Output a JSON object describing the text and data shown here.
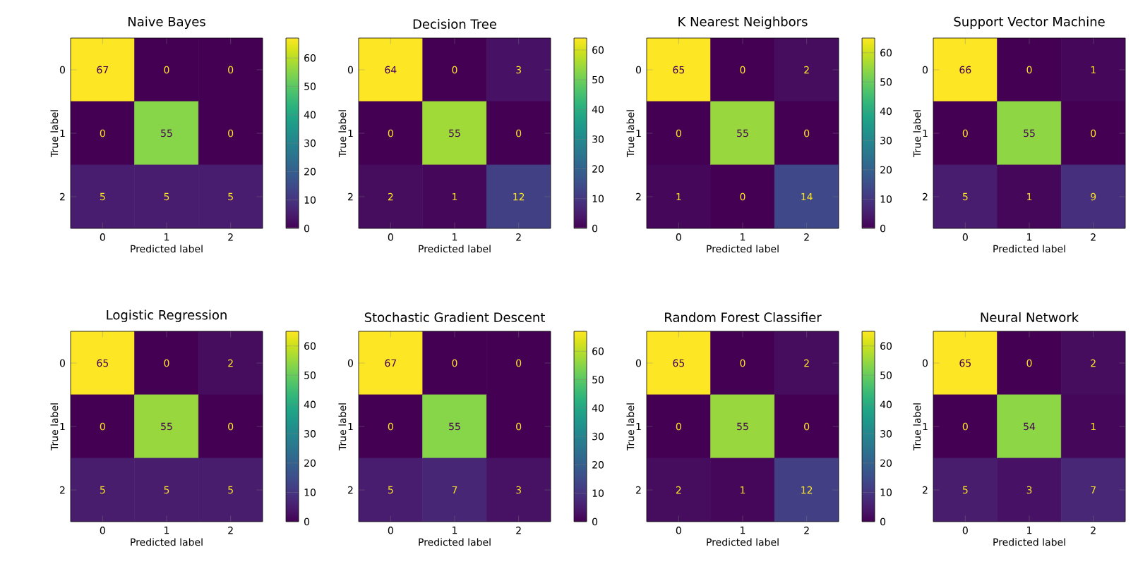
{
  "chart_data": [
    {
      "type": "heatmap",
      "title": "Naive Bayes",
      "xlabel": "Predicted label",
      "ylabel": "True label",
      "categories": [
        "0",
        "1",
        "2"
      ],
      "y_categories": [
        "0",
        "1",
        "2"
      ],
      "cells": [
        [
          67,
          0,
          0
        ],
        [
          0,
          55,
          0
        ],
        [
          5,
          5,
          5
        ]
      ],
      "data_labels": true,
      "clim": [
        0,
        67
      ],
      "cticks": [
        0,
        10,
        20,
        30,
        40,
        50,
        60
      ]
    },
    {
      "type": "heatmap",
      "title": "Decision Tree",
      "xlabel": "Predicted label",
      "ylabel": "True label",
      "categories": [
        "0",
        "1",
        "2"
      ],
      "y_categories": [
        "0",
        "1",
        "2"
      ],
      "cells": [
        [
          64,
          0,
          3
        ],
        [
          0,
          55,
          0
        ],
        [
          2,
          1,
          12
        ]
      ],
      "data_labels": true,
      "clim": [
        0,
        64
      ],
      "cticks": [
        0,
        10,
        20,
        30,
        40,
        50,
        60
      ]
    },
    {
      "type": "heatmap",
      "title": "K Nearest Neighbors",
      "xlabel": "Predicted label",
      "ylabel": "True label",
      "categories": [
        "0",
        "1",
        "2"
      ],
      "y_categories": [
        "0",
        "1",
        "2"
      ],
      "cells": [
        [
          65,
          0,
          2
        ],
        [
          0,
          55,
          0
        ],
        [
          1,
          0,
          14
        ]
      ],
      "data_labels": true,
      "clim": [
        0,
        65
      ],
      "cticks": [
        0,
        10,
        20,
        30,
        40,
        50,
        60
      ]
    },
    {
      "type": "heatmap",
      "title": "Support Vector Machine",
      "xlabel": "Predicted label",
      "ylabel": "True label",
      "categories": [
        "0",
        "1",
        "2"
      ],
      "y_categories": [
        "0",
        "1",
        "2"
      ],
      "cells": [
        [
          66,
          0,
          1
        ],
        [
          0,
          55,
          0
        ],
        [
          5,
          1,
          9
        ]
      ],
      "data_labels": true
    },
    {
      "type": "heatmap",
      "title": "Logistic Regression",
      "xlabel": "Predicted label",
      "ylabel": "True label",
      "categories": [
        "0",
        "1",
        "2"
      ],
      "y_categories": [
        "0",
        "1",
        "2"
      ],
      "cells": [
        [
          65,
          0,
          2
        ],
        [
          0,
          55,
          0
        ],
        [
          5,
          5,
          5
        ]
      ],
      "data_labels": true,
      "clim": [
        0,
        65
      ],
      "cticks": [
        0,
        10,
        20,
        30,
        40,
        50,
        60
      ]
    },
    {
      "type": "heatmap",
      "title": "Stochastic Gradient Descent",
      "xlabel": "Predicted label",
      "ylabel": "True label",
      "categories": [
        "0",
        "1",
        "2"
      ],
      "y_categories": [
        "0",
        "1",
        "2"
      ],
      "cells": [
        [
          67,
          0,
          0
        ],
        [
          0,
          55,
          0
        ],
        [
          5,
          7,
          3
        ]
      ],
      "data_labels": true,
      "clim": [
        0,
        67
      ],
      "cticks": [
        0,
        10,
        20,
        30,
        40,
        50,
        60
      ]
    },
    {
      "type": "heatmap",
      "title": "Random Forest Classifier",
      "xlabel": "Predicted label",
      "ylabel": "True label",
      "categories": [
        "0",
        "1",
        "2"
      ],
      "y_categories": [
        "0",
        "1",
        "2"
      ],
      "cells": [
        [
          65,
          0,
          2
        ],
        [
          0,
          55,
          0
        ],
        [
          2,
          1,
          12
        ]
      ],
      "data_labels": true,
      "clim": [
        0,
        65
      ],
      "cticks": [
        0,
        10,
        20,
        30,
        40,
        50,
        60
      ]
    },
    {
      "type": "heatmap",
      "title": "Neural Network",
      "xlabel": "Predicted label",
      "ylabel": "True label",
      "categories": [
        "0",
        "1",
        "2"
      ],
      "y_categories": [
        "0",
        "1",
        "2"
      ],
      "cells": [
        [
          65,
          0,
          2
        ],
        [
          0,
          54,
          1
        ],
        [
          5,
          3,
          7
        ]
      ],
      "data_labels": true
    }
  ]
}
